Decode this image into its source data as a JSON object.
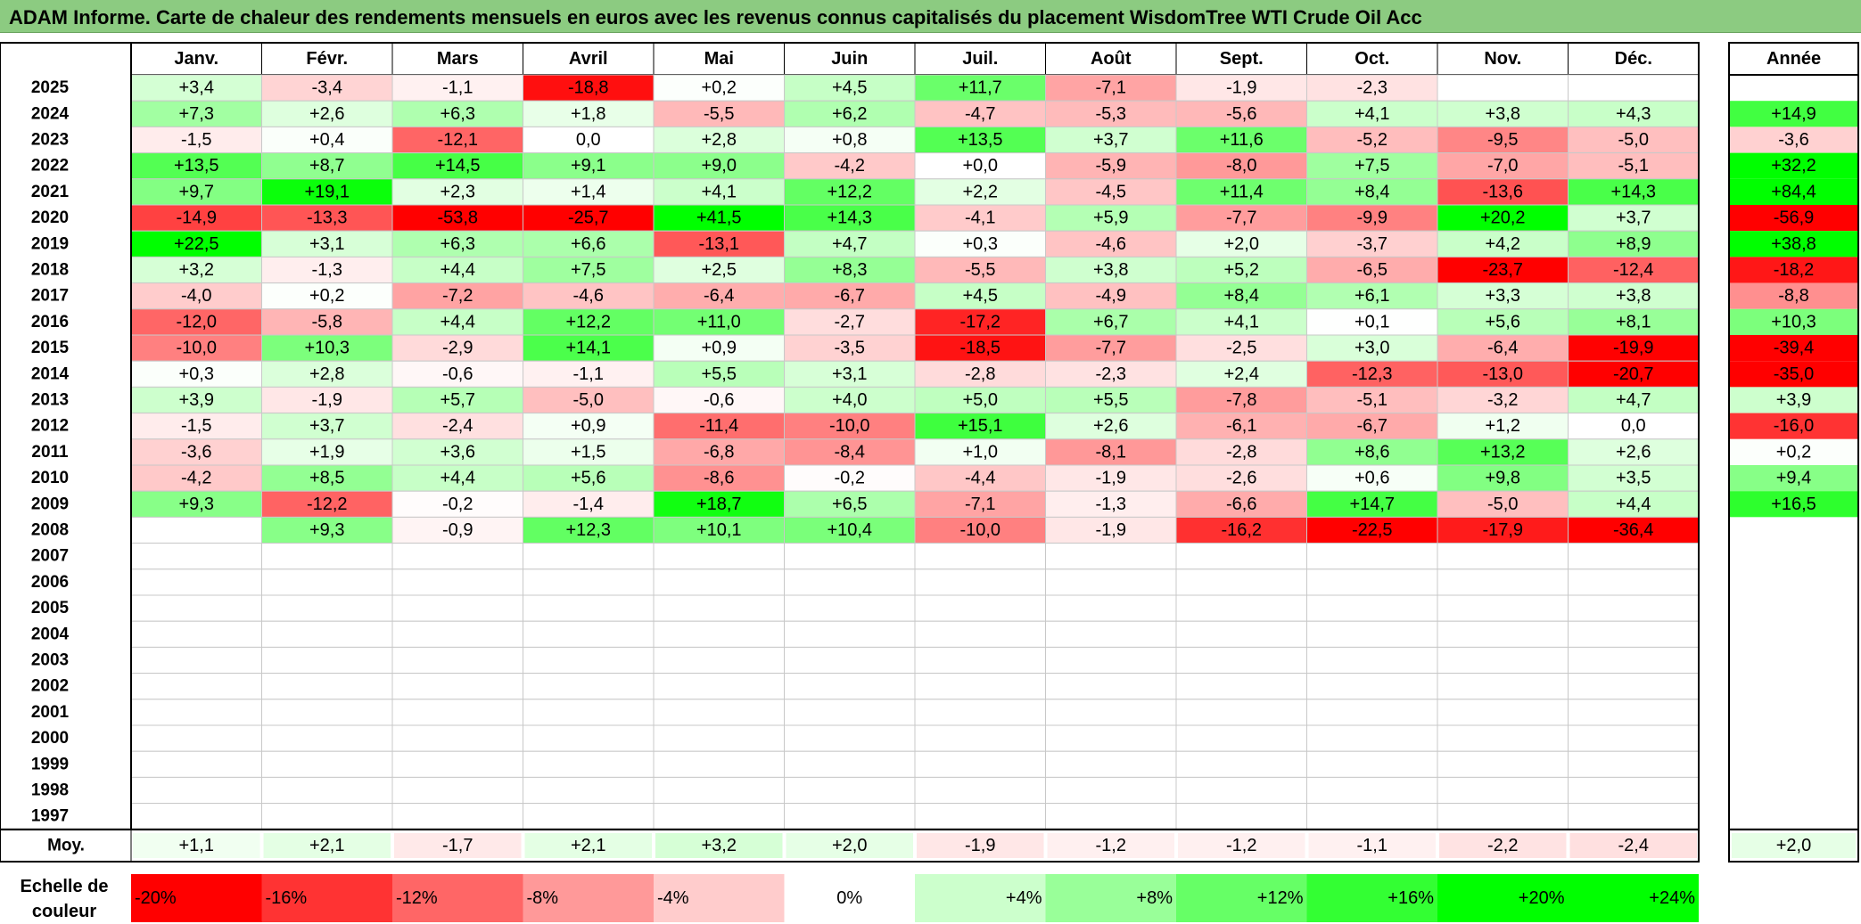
{
  "title": "ADAM Informe. Carte de chaleur des rendements mensuels en euros avec les revenus connus capitalisés du placement WisdomTree WTI Crude Oil Acc",
  "chart_data": {
    "type": "heatmap",
    "title": "ADAM Informe. Carte de chaleur des rendements mensuels en euros avec les revenus connus capitalisés du placement WisdomTree WTI Crude Oil Acc",
    "months": [
      "Janv.",
      "Févr.",
      "Mars",
      "Avril",
      "Mai",
      "Juin",
      "Juil.",
      "Août",
      "Sept.",
      "Oct.",
      "Nov.",
      "Déc."
    ],
    "year_header": "Année",
    "rows": [
      {
        "year": "2025",
        "values": [
          "+3,4",
          "-3,4",
          "-1,1",
          "-18,8",
          "+0,2",
          "+4,5",
          "+11,7",
          "-7,1",
          "-1,9",
          "-2,3",
          "",
          ""
        ],
        "annual": ""
      },
      {
        "year": "2024",
        "values": [
          "+7,3",
          "+2,6",
          "+6,3",
          "+1,8",
          "-5,5",
          "+6,2",
          "-4,7",
          "-5,3",
          "-5,6",
          "+4,1",
          "+3,8",
          "+4,3"
        ],
        "annual": "+14,9"
      },
      {
        "year": "2023",
        "values": [
          "-1,5",
          "+0,4",
          "-12,1",
          "0,0",
          "+2,8",
          "+0,8",
          "+13,5",
          "+3,7",
          "+11,6",
          "-5,2",
          "-9,5",
          "-5,0"
        ],
        "annual": "-3,6"
      },
      {
        "year": "2022",
        "values": [
          "+13,5",
          "+8,7",
          "+14,5",
          "+9,1",
          "+9,0",
          "-4,2",
          "+0,0",
          "-5,9",
          "-8,0",
          "+7,5",
          "-7,0",
          "-5,1"
        ],
        "annual": "+32,2"
      },
      {
        "year": "2021",
        "values": [
          "+9,7",
          "+19,1",
          "+2,3",
          "+1,4",
          "+4,1",
          "+12,2",
          "+2,2",
          "-4,5",
          "+11,4",
          "+8,4",
          "-13,6",
          "+14,3"
        ],
        "annual": "+84,4"
      },
      {
        "year": "2020",
        "values": [
          "-14,9",
          "-13,3",
          "-53,8",
          "-25,7",
          "+41,5",
          "+14,3",
          "-4,1",
          "+5,9",
          "-7,7",
          "-9,9",
          "+20,2",
          "+3,7"
        ],
        "annual": "-56,9"
      },
      {
        "year": "2019",
        "values": [
          "+22,5",
          "+3,1",
          "+6,3",
          "+6,6",
          "-13,1",
          "+4,7",
          "+0,3",
          "-4,6",
          "+2,0",
          "-3,7",
          "+4,2",
          "+8,9"
        ],
        "annual": "+38,8"
      },
      {
        "year": "2018",
        "values": [
          "+3,2",
          "-1,3",
          "+4,4",
          "+7,5",
          "+2,5",
          "+8,3",
          "-5,5",
          "+3,8",
          "+5,2",
          "-6,5",
          "-23,7",
          "-12,4"
        ],
        "annual": "-18,2"
      },
      {
        "year": "2017",
        "values": [
          "-4,0",
          "+0,2",
          "-7,2",
          "-4,6",
          "-6,4",
          "-6,7",
          "+4,5",
          "-4,9",
          "+8,4",
          "+6,1",
          "+3,3",
          "+3,8"
        ],
        "annual": "-8,8"
      },
      {
        "year": "2016",
        "values": [
          "-12,0",
          "-5,8",
          "+4,4",
          "+12,2",
          "+11,0",
          "-2,7",
          "-17,2",
          "+6,7",
          "+4,1",
          "+0,1",
          "+5,6",
          "+8,1"
        ],
        "annual": "+10,3"
      },
      {
        "year": "2015",
        "values": [
          "-10,0",
          "+10,3",
          "-2,9",
          "+14,1",
          "+0,9",
          "-3,5",
          "-18,5",
          "-7,7",
          "-2,5",
          "+3,0",
          "-6,4",
          "-19,9"
        ],
        "annual": "-39,4"
      },
      {
        "year": "2014",
        "values": [
          "+0,3",
          "+2,8",
          "-0,6",
          "-1,1",
          "+5,5",
          "+3,1",
          "-2,8",
          "-2,3",
          "+2,4",
          "-12,3",
          "-13,0",
          "-20,7"
        ],
        "annual": "-35,0"
      },
      {
        "year": "2013",
        "values": [
          "+3,9",
          "-1,9",
          "+5,7",
          "-5,0",
          "-0,6",
          "+4,0",
          "+5,0",
          "+5,5",
          "-7,8",
          "-5,1",
          "-3,2",
          "+4,7"
        ],
        "annual": "+3,9"
      },
      {
        "year": "2012",
        "values": [
          "-1,5",
          "+3,7",
          "-2,4",
          "+0,9",
          "-11,4",
          "-10,0",
          "+15,1",
          "+2,6",
          "-6,1",
          "-6,7",
          "+1,2",
          "0,0"
        ],
        "annual": "-16,0"
      },
      {
        "year": "2011",
        "values": [
          "-3,6",
          "+1,9",
          "+3,6",
          "+1,5",
          "-6,8",
          "-8,4",
          "+1,0",
          "-8,1",
          "-2,8",
          "+8,6",
          "+13,2",
          "+2,6"
        ],
        "annual": "+0,2"
      },
      {
        "year": "2010",
        "values": [
          "-4,2",
          "+8,5",
          "+4,4",
          "+5,6",
          "-8,6",
          "-0,2",
          "-4,4",
          "-1,9",
          "-2,6",
          "+0,6",
          "+9,8",
          "+3,5"
        ],
        "annual": "+9,4"
      },
      {
        "year": "2009",
        "values": [
          "+9,3",
          "-12,2",
          "-0,2",
          "-1,4",
          "+18,7",
          "+6,5",
          "-7,1",
          "-1,3",
          "-6,6",
          "+14,7",
          "-5,0",
          "+4,4"
        ],
        "annual": "+16,5"
      },
      {
        "year": "2008",
        "values": [
          "",
          "+9,3",
          "-0,9",
          "+12,3",
          "+10,1",
          "+10,4",
          "-10,0",
          "-1,9",
          "-16,2",
          "-22,5",
          "-17,9",
          "-36,4"
        ],
        "annual": ""
      },
      {
        "year": "2007",
        "values": [
          "",
          "",
          "",
          "",
          "",
          "",
          "",
          "",
          "",
          "",
          "",
          ""
        ],
        "annual": ""
      },
      {
        "year": "2006",
        "values": [
          "",
          "",
          "",
          "",
          "",
          "",
          "",
          "",
          "",
          "",
          "",
          ""
        ],
        "annual": ""
      },
      {
        "year": "2005",
        "values": [
          "",
          "",
          "",
          "",
          "",
          "",
          "",
          "",
          "",
          "",
          "",
          ""
        ],
        "annual": ""
      },
      {
        "year": "2004",
        "values": [
          "",
          "",
          "",
          "",
          "",
          "",
          "",
          "",
          "",
          "",
          "",
          ""
        ],
        "annual": ""
      },
      {
        "year": "2003",
        "values": [
          "",
          "",
          "",
          "",
          "",
          "",
          "",
          "",
          "",
          "",
          "",
          ""
        ],
        "annual": ""
      },
      {
        "year": "2002",
        "values": [
          "",
          "",
          "",
          "",
          "",
          "",
          "",
          "",
          "",
          "",
          "",
          ""
        ],
        "annual": ""
      },
      {
        "year": "2001",
        "values": [
          "",
          "",
          "",
          "",
          "",
          "",
          "",
          "",
          "",
          "",
          "",
          ""
        ],
        "annual": ""
      },
      {
        "year": "2000",
        "values": [
          "",
          "",
          "",
          "",
          "",
          "",
          "",
          "",
          "",
          "",
          "",
          ""
        ],
        "annual": ""
      },
      {
        "year": "1999",
        "values": [
          "",
          "",
          "",
          "",
          "",
          "",
          "",
          "",
          "",
          "",
          "",
          ""
        ],
        "annual": ""
      },
      {
        "year": "1998",
        "values": [
          "",
          "",
          "",
          "",
          "",
          "",
          "",
          "",
          "",
          "",
          "",
          ""
        ],
        "annual": ""
      },
      {
        "year": "1997",
        "values": [
          "",
          "",
          "",
          "",
          "",
          "",
          "",
          "",
          "",
          "",
          "",
          ""
        ],
        "annual": ""
      }
    ],
    "average": {
      "label": "Moy.",
      "values": [
        "+1,1",
        "+2,1",
        "-1,7",
        "+2,1",
        "+3,2",
        "+2,0",
        "-1,9",
        "-1,2",
        "-1,2",
        "-1,1",
        "-2,2",
        "-2,4"
      ],
      "annual": "+2,0"
    },
    "color_scale": {
      "label_line1": "Echelle de",
      "label_line2": "couleur",
      "stops": [
        {
          "label": "-20%",
          "value": -20,
          "color": "#ff0000"
        },
        {
          "label": "-16%",
          "value": -16,
          "color": "#ff3333"
        },
        {
          "label": "-12%",
          "value": -12,
          "color": "#ff6666"
        },
        {
          "label": "-8%",
          "value": -8,
          "color": "#ff9999"
        },
        {
          "label": "-4%",
          "value": -4,
          "color": "#ffcccc"
        },
        {
          "label": "0%",
          "value": 0,
          "color": "#ffffff"
        },
        {
          "label": "+4%",
          "value": 4,
          "color": "#ccffcc"
        },
        {
          "label": "+8%",
          "value": 8,
          "color": "#99ff99"
        },
        {
          "label": "+12%",
          "value": 12,
          "color": "#66ff66"
        },
        {
          "label": "+16%",
          "value": 16,
          "color": "#33ff33"
        },
        {
          "label": "+20%",
          "value": 20,
          "color": "#00ff00"
        },
        {
          "label": "+24%",
          "value": 24,
          "color": "#00ff00"
        }
      ]
    }
  }
}
